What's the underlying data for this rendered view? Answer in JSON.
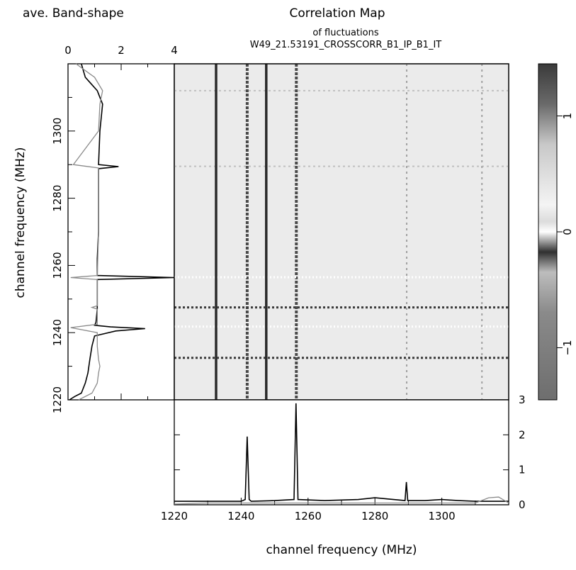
{
  "header": {
    "left_title": "ave. Band-shape",
    "main_title": "Correlation Map",
    "sub_title_1": "of fluctuations",
    "sub_title_2": "W49_21.53191_CROSSCORR_B1_IP_B1_IT"
  },
  "chart_data": [
    {
      "type": "line",
      "name": "ave-band-shape-left",
      "orientation": "vertical",
      "xlim": [
        0,
        4
      ],
      "ylim": [
        1220,
        1320
      ],
      "x_ticks": [
        0,
        2,
        4
      ],
      "y_ticks": [
        1220,
        1240,
        1260,
        1280,
        1300
      ],
      "ylabel": "channel frequency (MHz)",
      "series": [
        {
          "color": "#000000",
          "freq": [
            1220,
            1221,
            1222,
            1225,
            1228,
            1232,
            1236,
            1239,
            1240.5,
            1241.2,
            1241.7,
            1242.2,
            1243,
            1247,
            1252,
            1255.8,
            1256.4,
            1257,
            1262,
            1270,
            1280,
            1288.8,
            1289.4,
            1290,
            1300,
            1308,
            1312,
            1316,
            1320
          ],
          "value": [
            0.05,
            0.25,
            0.5,
            0.65,
            0.75,
            0.82,
            0.9,
            1.0,
            1.8,
            2.9,
            1.6,
            1.0,
            1.05,
            1.1,
            1.1,
            1.1,
            4.0,
            1.1,
            1.1,
            1.15,
            1.15,
            1.15,
            1.9,
            1.15,
            1.2,
            1.3,
            1.1,
            0.65,
            0.5
          ]
        },
        {
          "color": "#8a8a8a",
          "freq": [
            1220,
            1222,
            1225,
            1228,
            1230,
            1232,
            1236,
            1240,
            1241.5,
            1242.5,
            1247,
            1247.5,
            1248,
            1255.8,
            1256.4,
            1257,
            1270,
            1289,
            1290,
            1300,
            1308,
            1312,
            1316,
            1320
          ],
          "value": [
            0.4,
            0.9,
            1.1,
            1.15,
            1.2,
            1.15,
            1.1,
            1.1,
            0.1,
            1.1,
            1.1,
            0.9,
            1.1,
            1.1,
            0.1,
            1.1,
            1.15,
            1.15,
            0.2,
            1.15,
            1.2,
            1.3,
            1.0,
            0.3
          ]
        }
      ]
    },
    {
      "type": "heatmap",
      "name": "correlation-map",
      "title": "Correlation Map",
      "xlim": [
        1220,
        1320
      ],
      "ylim": [
        1220,
        1320
      ],
      "colorbar": {
        "min": -1.45,
        "max": 1.45,
        "ticks": [
          -1,
          0,
          1
        ]
      },
      "strong_lines_mhz": [
        1232.5,
        1247.5
      ],
      "medium_lines_mhz": [
        1241.8,
        1256.5
      ],
      "weak_lines_mhz": [
        1289.5,
        1312
      ]
    },
    {
      "type": "line",
      "name": "ave-band-shape-bottom",
      "xlim": [
        1220,
        1320
      ],
      "ylim": [
        0,
        3
      ],
      "x_ticks": [
        1220,
        1240,
        1260,
        1280,
        1300
      ],
      "y_ticks": [
        0,
        1,
        2,
        3
      ],
      "xlabel": "channel frequency (MHz)",
      "series": [
        {
          "color": "#000000",
          "freq": [
            1220,
            1225,
            1230,
            1235,
            1240,
            1241.2,
            1241.8,
            1242.4,
            1243,
            1250,
            1255.8,
            1256.4,
            1257,
            1265,
            1275,
            1280,
            1289,
            1289.4,
            1289.8,
            1295,
            1300,
            1305,
            1310,
            1315,
            1320
          ],
          "value": [
            0.1,
            0.1,
            0.1,
            0.1,
            0.1,
            0.15,
            1.95,
            0.15,
            0.1,
            0.12,
            0.15,
            2.9,
            0.15,
            0.12,
            0.15,
            0.2,
            0.12,
            0.65,
            0.12,
            0.12,
            0.15,
            0.12,
            0.1,
            0.1,
            0.1
          ]
        },
        {
          "color": "#8a8a8a",
          "freq": [
            1220,
            1230,
            1240,
            1250,
            1260,
            1270,
            1280,
            1290,
            1300,
            1310,
            1314,
            1317,
            1320
          ],
          "value": [
            0.02,
            0.05,
            0.05,
            0.05,
            0.05,
            0.05,
            0.05,
            0.05,
            0.05,
            0.05,
            0.2,
            0.22,
            0.05
          ]
        }
      ]
    }
  ]
}
